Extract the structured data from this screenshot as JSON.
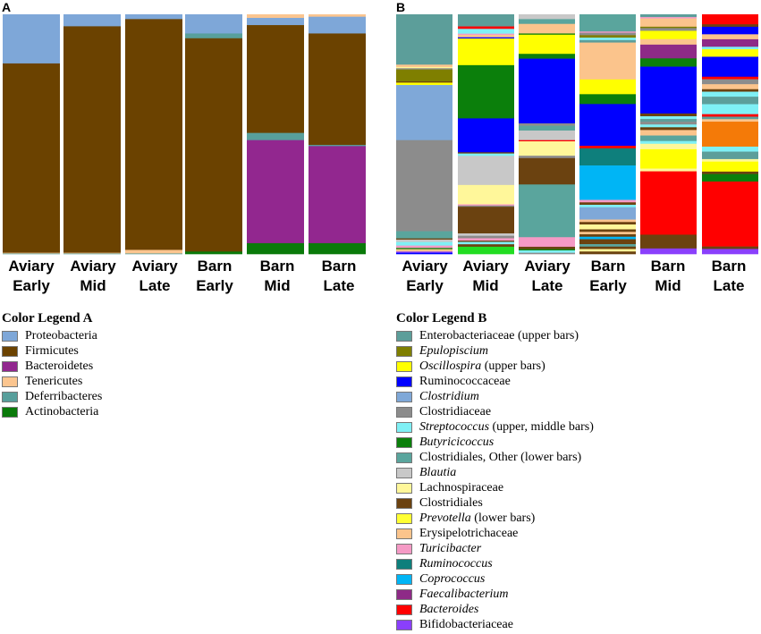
{
  "chart_data": [
    {
      "type": "bar",
      "stacked": true,
      "panel_label": "A",
      "unit": "relative abundance (%)",
      "bar_labels": [
        [
          "Aviary",
          "Early"
        ],
        [
          "Aviary",
          "Mid"
        ],
        [
          "Aviary",
          "Late"
        ],
        [
          "Barn",
          "Early"
        ],
        [
          "Barn",
          "Mid"
        ],
        [
          "Barn",
          "Late"
        ]
      ],
      "bars": [
        [
          [
            "Proteobacteria",
            20.5
          ],
          [
            "Firmicutes",
            79.0
          ],
          [
            "Tenericutes",
            0.3
          ],
          [
            "Deferribacteres",
            0.2
          ]
        ],
        [
          [
            "Proteobacteria",
            5.0
          ],
          [
            "Firmicutes",
            94.5
          ],
          [
            "Tenericutes",
            0.3
          ],
          [
            "Deferribacteres",
            0.2
          ]
        ],
        [
          [
            "Proteobacteria",
            2.0
          ],
          [
            "Firmicutes",
            96.3
          ],
          [
            "Tenericutes",
            1.5
          ],
          [
            "Deferribacteres",
            0.2
          ]
        ],
        [
          [
            "Proteobacteria",
            8.0
          ],
          [
            "Deferribacteres",
            2.0
          ],
          [
            "Firmicutes",
            89.0
          ],
          [
            "Actinobacteria",
            1.0
          ]
        ],
        [
          [
            "Tenericutes",
            1.5
          ],
          [
            "Proteobacteria",
            3.0
          ],
          [
            "Firmicutes",
            45.0
          ],
          [
            "Deferribacteres",
            3.0
          ],
          [
            "Bacteroidetes",
            43.0
          ],
          [
            "Actinobacteria",
            4.5
          ]
        ],
        [
          [
            "Tenericutes",
            1.0
          ],
          [
            "Proteobacteria",
            7.0
          ],
          [
            "Firmicutes",
            46.5
          ],
          [
            "Deferribacteres",
            0.5
          ],
          [
            "Bacteroidetes",
            40.5
          ],
          [
            "Actinobacteria",
            4.5
          ]
        ]
      ]
    },
    {
      "type": "bar",
      "stacked": true,
      "panel_label": "B",
      "unit": "relative abundance (%)",
      "bar_labels": [
        [
          "Aviary",
          "Early"
        ],
        [
          "Aviary",
          "Mid"
        ],
        [
          "Aviary",
          "Late"
        ],
        [
          "Barn",
          "Early"
        ],
        [
          "Barn",
          "Mid"
        ],
        [
          "Barn",
          "Late"
        ]
      ],
      "bars": [
        [
          [
            "Enterobacteriaceae (upper bars)",
            21
          ],
          [
            "Erysipelotrichaceae",
            1
          ],
          [
            "Lachnospiraceae",
            0.5
          ],
          [
            "Clostridiaceae",
            0.5
          ],
          [
            "Epulopiscium",
            5
          ],
          [
            "Clostridiales",
            0.5
          ],
          [
            "Oscillospira (upper bars)",
            1
          ],
          [
            "Clostridium",
            23
          ],
          [
            "Clostridiaceae",
            38
          ],
          [
            "Clostridiales, Other (lower bars)",
            3
          ],
          [
            "Clostridiales",
            0.5
          ],
          [
            "Blautia",
            1
          ],
          [
            "Streptococcus (upper, middle bars)",
            1.5
          ],
          [
            "Turicibacter",
            1
          ],
          [
            "Butyricicoccus",
            0.5
          ],
          [
            "Erysipelotrichaceae",
            1
          ],
          [
            "Bifidobacteriaceae",
            0.5
          ],
          [
            "Ruminococcaceae",
            0.5
          ]
        ],
        [
          [
            "Enterobacteriaceae (upper bars)",
            5
          ],
          [
            "Bacteroides",
            1
          ],
          [
            "Streptococcus (upper, middle bars)",
            2
          ],
          [
            "Turicibacter",
            0.5
          ],
          [
            "Erysipelotrichaceae",
            1
          ],
          [
            "Ruminococcaceae",
            0.5
          ],
          [
            "Oscillospira (upper bars)",
            11
          ],
          [
            "Butyricicoccus",
            22
          ],
          [
            "Ruminococcaceae",
            14
          ],
          [
            "Clostridiales",
            0.5
          ],
          [
            "Streptococcus (upper, middle bars)",
            1
          ],
          [
            "Blautia",
            12
          ],
          [
            "Lachnospiraceae",
            8
          ],
          [
            "Turicibacter",
            0.5
          ],
          [
            "Clostridiaceae",
            0.5
          ],
          [
            "Clostridiales",
            11
          ],
          [
            "Blautia",
            1
          ],
          [
            "Clostridiaceae",
            1
          ],
          [
            "Turicibacter",
            1
          ],
          [
            "Clostridiales",
            0.5
          ],
          [
            "Streptococcus (upper, middle bars)",
            1
          ],
          [
            "Clostridiales",
            1
          ],
          [
            "Actinobacteria",
            3
          ]
        ],
        [
          [
            "Blautia",
            2
          ],
          [
            "Clostridiales, Other (lower bars)",
            2
          ],
          [
            "Erysipelotrichaceae",
            4
          ],
          [
            "Butyricicoccus",
            0.5
          ],
          [
            "Oscillospira (upper bars)",
            8
          ],
          [
            "Butyricicoccus",
            2
          ],
          [
            "Ruminococcaceae",
            27
          ],
          [
            "Clostridiaceae",
            1
          ],
          [
            "Clostridiales, Other (lower bars)",
            2
          ],
          [
            "Blautia",
            4
          ],
          [
            "Bacteroides",
            0.5
          ],
          [
            "Lachnospiraceae",
            6
          ],
          [
            "Clostridiaceae",
            1
          ],
          [
            "Clostridiales",
            11
          ],
          [
            "Clostridiales, Other (lower bars)",
            22
          ],
          [
            "Turicibacter",
            4
          ],
          [
            "Clostridiales",
            1
          ],
          [
            "Butyricicoccus",
            0.5
          ],
          [
            "Streptococcus (upper, middle bars)",
            1
          ],
          [
            "Clostridiaceae",
            0.5
          ]
        ],
        [
          [
            "Clostridiales, Other (lower bars)",
            7
          ],
          [
            "Turicibacter",
            0.5
          ],
          [
            "Clostridiaceae",
            1
          ],
          [
            "Epulopiscium",
            1
          ],
          [
            "Streptococcus (upper, middle bars)",
            1
          ],
          [
            "Enterobacteriaceae (upper bars)",
            1
          ],
          [
            "Erysipelotrichaceae",
            15
          ],
          [
            "Oscillospira (upper bars)",
            6
          ],
          [
            "Butyricicoccus",
            4
          ],
          [
            "Ruminococcaceae",
            17
          ],
          [
            "Bacteroides",
            1
          ],
          [
            "Ruminococcus",
            7
          ],
          [
            "Coprococcus",
            14
          ],
          [
            "Turicibacter",
            1
          ],
          [
            "Clostridiales",
            1
          ],
          [
            "Streptococcus (upper, middle bars)",
            1
          ],
          [
            "Clostridium",
            5
          ],
          [
            "Erysipelotrichaceae",
            1
          ],
          [
            "Clostridiales",
            1
          ],
          [
            "Lachnospiraceae",
            2
          ],
          [
            "Clostridiales",
            1
          ],
          [
            "Erysipelotrichaceae",
            1
          ],
          [
            "Clostridiales",
            1
          ],
          [
            "Coprococcus",
            1
          ],
          [
            "Clostridiales",
            2
          ],
          [
            "Clostridiales, Other (lower bars)",
            1
          ],
          [
            "Clostridiales",
            1
          ],
          [
            "Lachnospiraceae",
            1
          ],
          [
            "Clostridiales",
            1
          ]
        ],
        [
          [
            "Enterobacteriaceae (upper bars)",
            1
          ],
          [
            "Turicibacter",
            0.5
          ],
          [
            "Erysipelotrichaceae",
            3
          ],
          [
            "Epulopiscium",
            0.5
          ],
          [
            "Clostridiaceae",
            1
          ],
          [
            "Oscillospira (upper bars)",
            3
          ],
          [
            "Erysipelotrichaceae",
            2
          ],
          [
            "Faecalibacterium",
            5
          ],
          [
            "Butyricicoccus",
            3
          ],
          [
            "Ruminococcaceae",
            17
          ],
          [
            "Clostridiales",
            1
          ],
          [
            "Streptococcus (upper, middle bars)",
            1
          ],
          [
            "Enterobacteriaceae (upper bars)",
            1
          ],
          [
            "Clostridiaceae",
            1
          ],
          [
            "Streptococcus (upper, middle bars)",
            1
          ],
          [
            "Clostridiales",
            1
          ],
          [
            "Erysipelotrichaceae",
            2
          ],
          [
            "Clostridiales, Other (lower bars)",
            2
          ],
          [
            "Streptococcus (upper, middle bars)",
            1
          ],
          [
            "Lachnospiraceae",
            2
          ],
          [
            "Oscillospira (upper bars)",
            7
          ],
          [
            "Lachnospiraceae",
            1
          ],
          [
            "Bacteroides",
            23
          ],
          [
            "Clostridiales",
            5
          ],
          [
            "Bifidobacteriaceae",
            2
          ]
        ],
        [
          [
            "Bacteroides",
            4
          ],
          [
            "Clostridiales",
            1
          ],
          [
            "Ruminococcaceae",
            3
          ],
          [
            "Erysipelotrichaceae",
            2
          ],
          [
            "Faecalibacterium",
            3
          ],
          [
            "Streptococcus (upper, middle bars)",
            1
          ],
          [
            "Oscillospira (upper bars)",
            3
          ],
          [
            "Ruminococcaceae",
            8
          ],
          [
            "Bacteroides",
            1
          ],
          [
            "Clostridiaceae",
            2
          ],
          [
            "Erysipelotrichaceae",
            2
          ],
          [
            "Clostridiales",
            1
          ],
          [
            "Streptococcus (upper, middle bars)",
            2
          ],
          [
            "Enterobacteriaceae (upper bars)",
            3
          ],
          [
            "Streptococcus (upper, middle bars)",
            4
          ],
          [
            "Bacteroides",
            1
          ],
          [
            "Enterobacteriaceae (upper bars)",
            1
          ],
          [
            "Erysipelotrichaceae",
            1
          ],
          [
            "Orange",
            10
          ],
          [
            "Streptococcus (upper, middle bars)",
            2
          ],
          [
            "Enterobacteriaceae (upper bars)",
            3
          ],
          [
            "Lachnospiraceae",
            1
          ],
          [
            "Oscillospira (upper bars)",
            4
          ],
          [
            "Clostridiales",
            1
          ],
          [
            "Butyricicoccus",
            3
          ],
          [
            "Bacteroides",
            26
          ],
          [
            "Clostridiales",
            1
          ],
          [
            "Bifidobacteriaceae",
            2
          ]
        ]
      ]
    }
  ],
  "panel_a": {
    "label": "A"
  },
  "panel_b": {
    "label": "B"
  },
  "xlabels": [
    {
      "l1": "Aviary",
      "l2": "Early"
    },
    {
      "l1": "Aviary",
      "l2": "Mid"
    },
    {
      "l1": "Aviary",
      "l2": "Late"
    },
    {
      "l1": "Barn",
      "l2": "Early"
    },
    {
      "l1": "Barn",
      "l2": "Mid"
    },
    {
      "l1": "Barn",
      "l2": "Late"
    }
  ],
  "legend_a": {
    "title": "Color Legend A",
    "items": [
      {
        "name": "Proteobacteria",
        "color": "#7ea7d8"
      },
      {
        "name": "Firmicutes",
        "color": "#6b4200"
      },
      {
        "name": "Bacteroidetes",
        "color": "#92278f"
      },
      {
        "name": "Tenericutes",
        "color": "#fbc58f"
      },
      {
        "name": "Deferribacteres",
        "color": "#589f9c"
      },
      {
        "name": "Actinobacteria",
        "color": "#0a7a0a"
      }
    ]
  },
  "legend_b": {
    "title": "Color Legend B",
    "items": [
      {
        "name": "Enterobacteriaceae",
        "suffix": " (upper bars)",
        "italic": false,
        "color": "#5c9e9a"
      },
      {
        "name": "Epulopiscium",
        "suffix": "",
        "italic": true,
        "color": "#7f7f00"
      },
      {
        "name": "Oscillospira",
        "suffix": " (upper bars)",
        "italic": true,
        "color": "#ffff00"
      },
      {
        "name": "Ruminococcaceae",
        "suffix": "",
        "italic": false,
        "color": "#0000ff"
      },
      {
        "name": "Clostridium",
        "suffix": "",
        "italic": true,
        "color": "#7fa8d8"
      },
      {
        "name": "Clostridiaceae",
        "suffix": "",
        "italic": false,
        "color": "#8c8c8c"
      },
      {
        "name": "Streptococcus",
        "suffix": " (upper, middle bars)",
        "italic": true,
        "color": "#7ff0f5"
      },
      {
        "name": "Butyricicoccus",
        "suffix": "",
        "italic": true,
        "color": "#0b7f0b"
      },
      {
        "name": "Clostridiales, Other",
        "suffix": " (lower bars)",
        "italic": false,
        "color": "#5aa59d"
      },
      {
        "name": "Blautia",
        "suffix": "",
        "italic": true,
        "color": "#c8c8c8"
      },
      {
        "name": "Lachnospiraceae",
        "suffix": "",
        "italic": false,
        "color": "#fff79a"
      },
      {
        "name": "Clostridiales",
        "suffix": "",
        "italic": false,
        "color": "#6b4210"
      },
      {
        "name": "Prevotella",
        "suffix": " (lower bars)",
        "italic": true,
        "color": "#ffff33"
      },
      {
        "name": "Erysipelotrichaceae",
        "suffix": "",
        "italic": false,
        "color": "#fbc48c"
      },
      {
        "name": "Turicibacter",
        "suffix": "",
        "italic": true,
        "color": "#f59ac5"
      },
      {
        "name": "Ruminococcus",
        "suffix": "",
        "italic": true,
        "color": "#0e7f7c"
      },
      {
        "name": "Coprococcus",
        "suffix": "",
        "italic": true,
        "color": "#00b5f5"
      },
      {
        "name": "Faecalibacterium",
        "suffix": "",
        "italic": true,
        "color": "#8e2a87"
      },
      {
        "name": "Bacteroides",
        "suffix": "",
        "italic": true,
        "color": "#ff0000"
      },
      {
        "name": "Bifidobacteriaceae",
        "suffix": "",
        "italic": false,
        "color": "#8a3ffc"
      }
    ]
  },
  "extra_colors": {
    "Orange": "#f47a08",
    "Actinobacteria": "#22dd22",
    "Clostridiaceae": "#8c8c8c",
    "Clostridiales": "#6b4210",
    "Bifidobacteriaceae": "#8a3ffc"
  }
}
